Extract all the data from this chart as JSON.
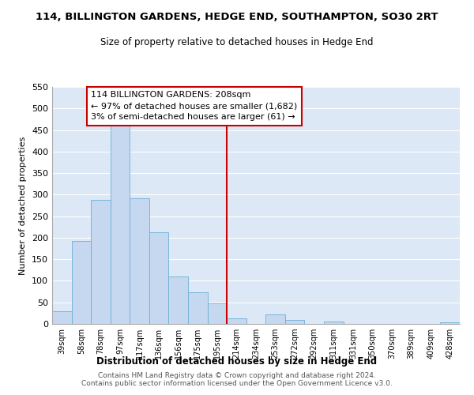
{
  "title": "114, BILLINGTON GARDENS, HEDGE END, SOUTHAMPTON, SO30 2RT",
  "subtitle": "Size of property relative to detached houses in Hedge End",
  "xlabel": "Distribution of detached houses by size in Hedge End",
  "ylabel": "Number of detached properties",
  "bin_labels": [
    "39sqm",
    "58sqm",
    "78sqm",
    "97sqm",
    "117sqm",
    "136sqm",
    "156sqm",
    "175sqm",
    "195sqm",
    "214sqm",
    "234sqm",
    "253sqm",
    "272sqm",
    "292sqm",
    "311sqm",
    "331sqm",
    "350sqm",
    "370sqm",
    "389sqm",
    "409sqm",
    "428sqm"
  ],
  "bar_values": [
    30,
    192,
    287,
    460,
    291,
    212,
    110,
    74,
    47,
    13,
    0,
    22,
    9,
    0,
    5,
    0,
    0,
    0,
    0,
    0,
    4
  ],
  "bar_color": "#c5d8f0",
  "bar_edge_color": "#6baed6",
  "vline_x_data": 8.5,
  "vline_color": "#cc0000",
  "annotation_text": "114 BILLINGTON GARDENS: 208sqm\n← 97% of detached houses are smaller (1,682)\n3% of semi-detached houses are larger (61) →",
  "annotation_box_color": "#ffffff",
  "annotation_box_edge_color": "#cc0000",
  "ylim": [
    0,
    550
  ],
  "yticks": [
    0,
    50,
    100,
    150,
    200,
    250,
    300,
    350,
    400,
    450,
    500,
    550
  ],
  "footer_line1": "Contains HM Land Registry data © Crown copyright and database right 2024.",
  "footer_line2": "Contains public sector information licensed under the Open Government Licence v3.0."
}
